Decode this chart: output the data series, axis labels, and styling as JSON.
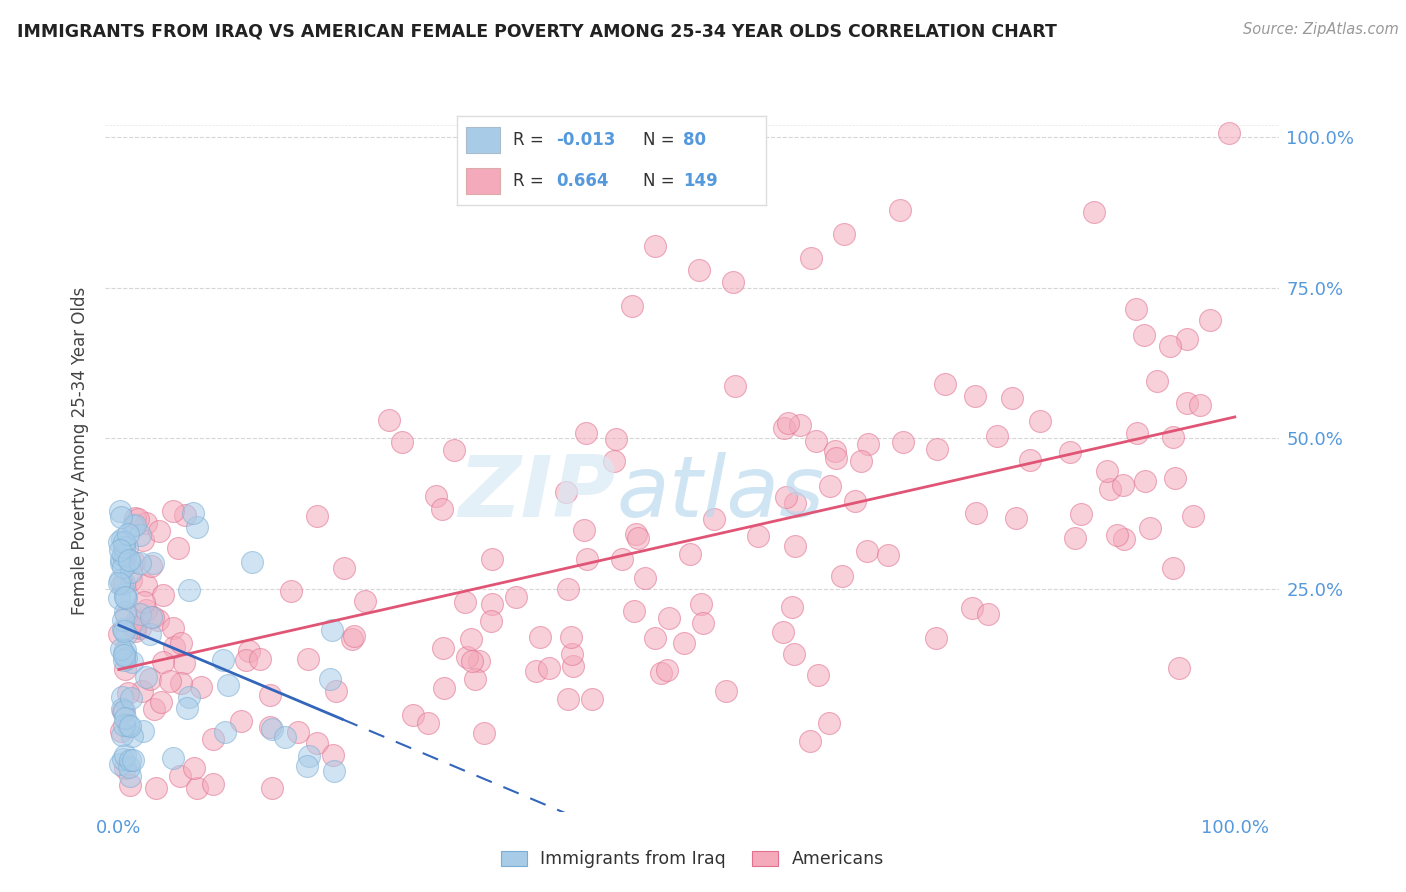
{
  "title": "IMMIGRANTS FROM IRAQ VS AMERICAN FEMALE POVERTY AMONG 25-34 YEAR OLDS CORRELATION CHART",
  "source": "Source: ZipAtlas.com",
  "ylabel": "Female Poverty Among 25-34 Year Olds",
  "blue_color": "#A8CCE8",
  "blue_edge_color": "#7AADD4",
  "pink_color": "#F4AABB",
  "pink_edge_color": "#E07090",
  "blue_line_color": "#3366BB",
  "pink_line_color": "#E05575",
  "blue_R": -0.013,
  "blue_N": 80,
  "pink_R": 0.664,
  "pink_N": 149,
  "legend_label_blue": "Immigrants from Iraq",
  "legend_label_pink": "Americans",
  "background_color": "#FFFFFF",
  "grid_color": "#CCCCCC",
  "title_color": "#222222",
  "tick_color": "#5599DD",
  "watermark_zip_color": "#C8DFF0",
  "watermark_atlas_color": "#AACCDD"
}
